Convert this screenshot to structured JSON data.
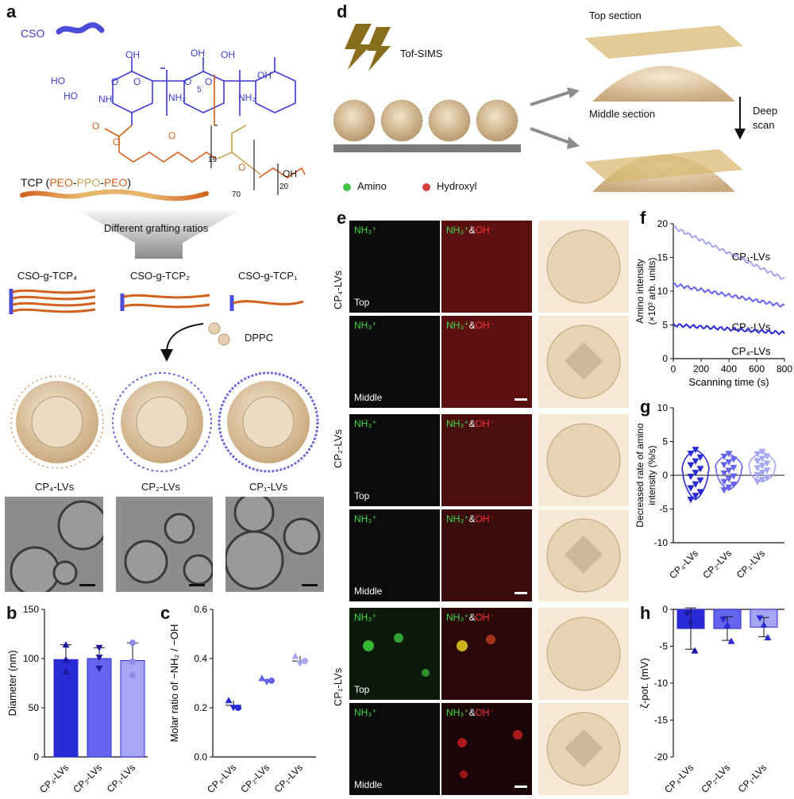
{
  "panels": {
    "a": {
      "letter": "a",
      "cso_label": "CSO",
      "tcp_label_pre": "TCP (",
      "tcp_peo": "PEO",
      "tcp_dash1": "-",
      "tcp_ppo": "PPO",
      "tcp_dash2": "-",
      "tcp_peo2": "PEO",
      "tcp_close": ")",
      "chem": {
        "ho1": "HO",
        "oh1": "OH",
        "ho2": "HO",
        "nh": "NH",
        "o1": "O",
        "o2": "O",
        "o3": "O",
        "oh2": "OH",
        "nh2a": "NH₂",
        "sub5": "5",
        "oh3": "OH",
        "oh4": "OH",
        "nh2b": "NH₂",
        "o4": "O",
        "o5": "O",
        "o6": "O",
        "o7": "O",
        "o8": "O",
        "oh5": "OH",
        "sub19": "19",
        "sub70": "70",
        "sub20": "20"
      },
      "grafting_label": "Different grafting ratios",
      "polymer1": "CSO-g-TCP₄",
      "polymer2": "CSO-g-TCP₂",
      "polymer3": "CSO-g-TCP₁",
      "dppc": "DPPC",
      "vesicle1": "CP₄-LVs",
      "vesicle2": "CP₂-LVs",
      "vesicle3": "CP₁-LVs"
    },
    "d": {
      "letter": "d",
      "tofsims": "Tof-SIMS",
      "top_section": "Top section",
      "middle_section": "Middle section",
      "deep_scan_1": "Deep",
      "deep_scan_2": "scan",
      "amino": "Amino",
      "hydroxyl": "Hydroxyl"
    },
    "e": {
      "letter": "e",
      "row_cp4": "CP₄-LVs",
      "row_cp2": "CP₂-LVs",
      "row_cp1": "CP₁-LVs",
      "nh3": "NH₃⁺",
      "amp": "&",
      "oh": "OH⁻",
      "top": "Top",
      "middle": "Middle"
    },
    "b": {
      "letter": "b"
    },
    "c": {
      "letter": "c"
    },
    "f": {
      "letter": "f"
    },
    "g": {
      "letter": "g"
    },
    "h": {
      "letter": "h"
    }
  },
  "colors": {
    "blue_dark": "#2a2ad6",
    "blue_mid": "#6464ee",
    "blue_light": "#a6a6f5",
    "cso_blue": "#3c3ccf",
    "tcp_orange": "#d2601e",
    "tcp_tan": "#c8a24e",
    "bead": "#e6cfae",
    "arrow_gray": "#8c8c8c",
    "bolt": "#8a6d1c"
  },
  "chart_data": [
    {
      "panel": "b",
      "type": "bar",
      "categories": [
        "CP₄-LVs",
        "CP₂-LVs",
        "CP₁-LVs"
      ],
      "values": [
        99,
        100,
        98
      ],
      "errors": [
        15,
        11,
        18
      ],
      "points": [
        [
          114,
          87,
          99
        ],
        [
          111,
          90,
          101
        ],
        [
          116,
          83,
          97
        ]
      ],
      "point_markers": [
        "triangle-up",
        "triangle-down",
        "circle"
      ],
      "colors": [
        "#2a2ad6",
        "#6464ee",
        "#a6a6f5"
      ],
      "ylabel": "Diameter (nm)",
      "ylim": [
        0,
        150
      ],
      "yticks": [
        0,
        50,
        100,
        150
      ]
    },
    {
      "panel": "c",
      "type": "scatter",
      "categories": [
        "CP₄-LVs",
        "CP₂-LVs",
        "CP₁-LVs"
      ],
      "means": [
        0.21,
        0.31,
        0.39
      ],
      "errors": [
        0.02,
        0.01,
        0.02
      ],
      "points": [
        [
          0.23,
          0.2,
          0.2
        ],
        [
          0.32,
          0.305,
          0.31
        ],
        [
          0.41,
          0.38,
          0.39
        ]
      ],
      "colors": [
        "#2a2ad6",
        "#6464ee",
        "#a6a6f5"
      ],
      "ylabel": "Molar ratio of −NH₂ / −OH",
      "ylim": [
        0,
        0.6
      ],
      "yticks": [
        "0.0",
        "0.2",
        "0.4",
        "0.6"
      ]
    },
    {
      "panel": "f",
      "type": "line",
      "xlabel": "Scanning time (s)",
      "ylabel_1": "Amino intensity",
      "ylabel_2": "(×10³ arb. units)",
      "xlim": [
        0,
        800
      ],
      "ylim": [
        0,
        20
      ],
      "xticks": [
        0,
        200,
        400,
        600,
        800
      ],
      "yticks": [
        0,
        5,
        10,
        15,
        20
      ],
      "series": [
        {
          "name": "CP₁-LVs",
          "color": "#a6a6f5",
          "start": 19.5,
          "end": 11.8
        },
        {
          "name": "CP₂-LVs",
          "color": "#6464ee",
          "start": 11,
          "end": 7.8
        },
        {
          "name": "CP₄-LVs",
          "color": "#2a2ad6",
          "start": 5,
          "end": 3.8
        }
      ]
    },
    {
      "panel": "g",
      "type": "scatter",
      "categories": [
        "CP₄-LVs",
        "CP₂-LVs",
        "CP₁-LVs"
      ],
      "ylabel_1": "Decreased rate of amino",
      "ylabel_2": "intensity (%/s)",
      "ylim": [
        -10,
        10
      ],
      "yticks": [
        -10,
        -5,
        0,
        5,
        10
      ],
      "ranges": [
        [
          -3.6,
          3.8
        ],
        [
          -2.2,
          3.2
        ],
        [
          -1,
          3.5
        ]
      ],
      "medians": [
        0.5,
        1.0,
        1.2
      ],
      "colors": [
        "#2a2ad6",
        "#6464ee",
        "#a6a6f5"
      ]
    },
    {
      "panel": "h",
      "type": "bar",
      "categories": [
        "CP₄-LVs",
        "CP₂-LVs",
        "CP₁-LVs"
      ],
      "values": [
        -2.6,
        -2.6,
        -2.4
      ],
      "errors": [
        2.8,
        1.6,
        1.3
      ],
      "points": [
        [
          -0.6,
          -1.6,
          -5.6
        ],
        [
          -1.4,
          -2.1,
          -4.3
        ],
        [
          -1.2,
          -2.1,
          -3.8
        ]
      ],
      "colors": [
        "#2a2ad6",
        "#6464ee",
        "#a6a6f5"
      ],
      "ylabel": "ζ-pot. (mV)",
      "ylim": [
        -20,
        0
      ],
      "yticks": [
        -20,
        -15,
        -10,
        -5,
        0
      ]
    }
  ]
}
